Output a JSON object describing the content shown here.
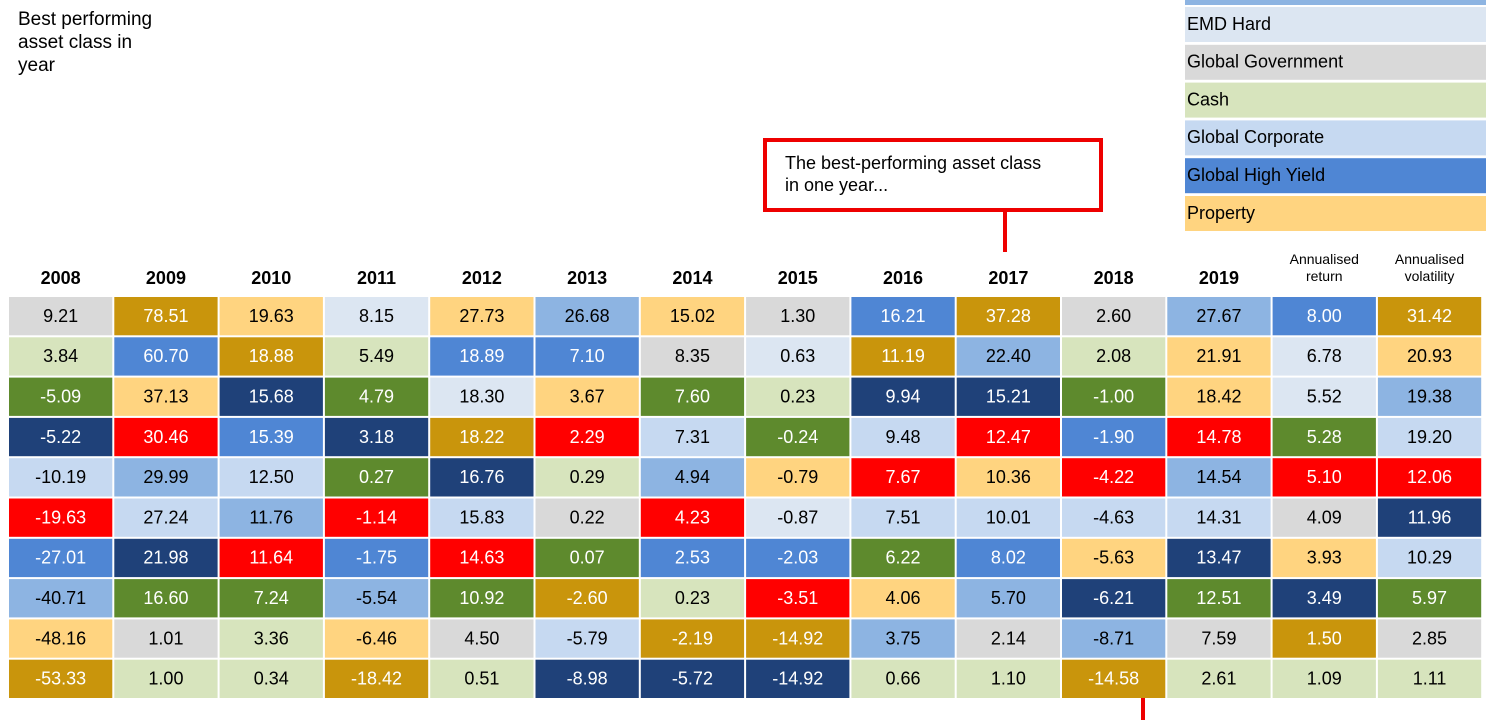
{
  "side_label": "Best performing asset class in year",
  "callout": "The best-performing asset class in one year...",
  "palette": {
    "G": "#d9d9d9",
    "A": "#c9950c",
    "O": "#ffd480",
    "E": "#dce6f2",
    "K": "#c6d9f1",
    "M": "#8db4e2",
    "B": "#4f86d4",
    "C": "#d7e4bd",
    "D": "#5e8a2d",
    "N": "#1f4179",
    "R": "#ff0000"
  },
  "dark_codes": "ABDNR",
  "legend": [
    {
      "label": "EMD Hard",
      "code": "E"
    },
    {
      "label": "Global Government",
      "code": "G"
    },
    {
      "label": "Cash",
      "code": "C"
    },
    {
      "label": "Global Corporate",
      "code": "K"
    },
    {
      "label": "Global High Yield",
      "code": "B"
    },
    {
      "label": "Property",
      "code": "O"
    }
  ],
  "table": {
    "header": [
      "2008",
      "2009",
      "2010",
      "2011",
      "2012",
      "2013",
      "2014",
      "2015",
      "2016",
      "2017",
      "2018",
      "2019",
      "Annualised return",
      "Annualised volatility"
    ],
    "rows": [
      [
        "9.21",
        "78.51",
        "19.63",
        "8.15",
        "27.73",
        "26.68",
        "15.02",
        "1.30",
        "16.21",
        "37.28",
        "2.60",
        "27.67",
        "8.00",
        "31.42"
      ],
      [
        "3.84",
        "60.70",
        "18.88",
        "5.49",
        "18.89",
        "7.10",
        "8.35",
        "0.63",
        "11.19",
        "22.40",
        "2.08",
        "21.91",
        "6.78",
        "20.93"
      ],
      [
        "-5.09",
        "37.13",
        "15.68",
        "4.79",
        "18.30",
        "3.67",
        "7.60",
        "0.23",
        "9.94",
        "15.21",
        "-1.00",
        "18.42",
        "5.52",
        "19.38"
      ],
      [
        "-5.22",
        "30.46",
        "15.39",
        "3.18",
        "18.22",
        "2.29",
        "7.31",
        "-0.24",
        "9.48",
        "12.47",
        "-1.90",
        "14.78",
        "5.28",
        "19.20"
      ],
      [
        "-10.19",
        "29.99",
        "12.50",
        "0.27",
        "16.76",
        "0.29",
        "4.94",
        "-0.79",
        "7.67",
        "10.36",
        "-4.22",
        "14.54",
        "5.10",
        "12.06"
      ],
      [
        "-19.63",
        "27.24",
        "11.76",
        "-1.14",
        "15.83",
        "0.22",
        "4.23",
        "-0.87",
        "7.51",
        "10.01",
        "-4.63",
        "14.31",
        "4.09",
        "11.96"
      ],
      [
        "-27.01",
        "21.98",
        "11.64",
        "-1.75",
        "14.63",
        "0.07",
        "2.53",
        "-2.03",
        "6.22",
        "8.02",
        "-5.63",
        "13.47",
        "3.93",
        "10.29"
      ],
      [
        "-40.71",
        "16.60",
        "7.24",
        "-5.54",
        "10.92",
        "-2.60",
        "0.23",
        "-3.51",
        "4.06",
        "5.70",
        "-6.21",
        "12.51",
        "3.49",
        "5.97"
      ],
      [
        "-48.16",
        "1.01",
        "3.36",
        "-6.46",
        "4.50",
        "-5.79",
        "-2.19",
        "-14.92",
        "3.75",
        "2.14",
        "-8.71",
        "7.59",
        "1.50",
        "2.85"
      ],
      [
        "-53.33",
        "1.00",
        "0.34",
        "-18.42",
        "0.51",
        "-8.98",
        "-5.72",
        "-14.92",
        "0.66",
        "1.10",
        "-14.58",
        "2.61",
        "1.09",
        "1.11"
      ]
    ],
    "colors": [
      "GAOEOMOGBAGMBA",
      "CBACBBGEAMCOEO",
      "DONDEODCNNDOEM",
      "NRBNARKDKRBRDK",
      "KMKDNCMORORMRR",
      "RKMRKGREKKKKGN",
      "BNRBRDBBDBONOK",
      "MDDMDACROMNDND",
      "OGCOGKAAMGMGAG",
      "ACCACNNNCCACCC"
    ]
  }
}
